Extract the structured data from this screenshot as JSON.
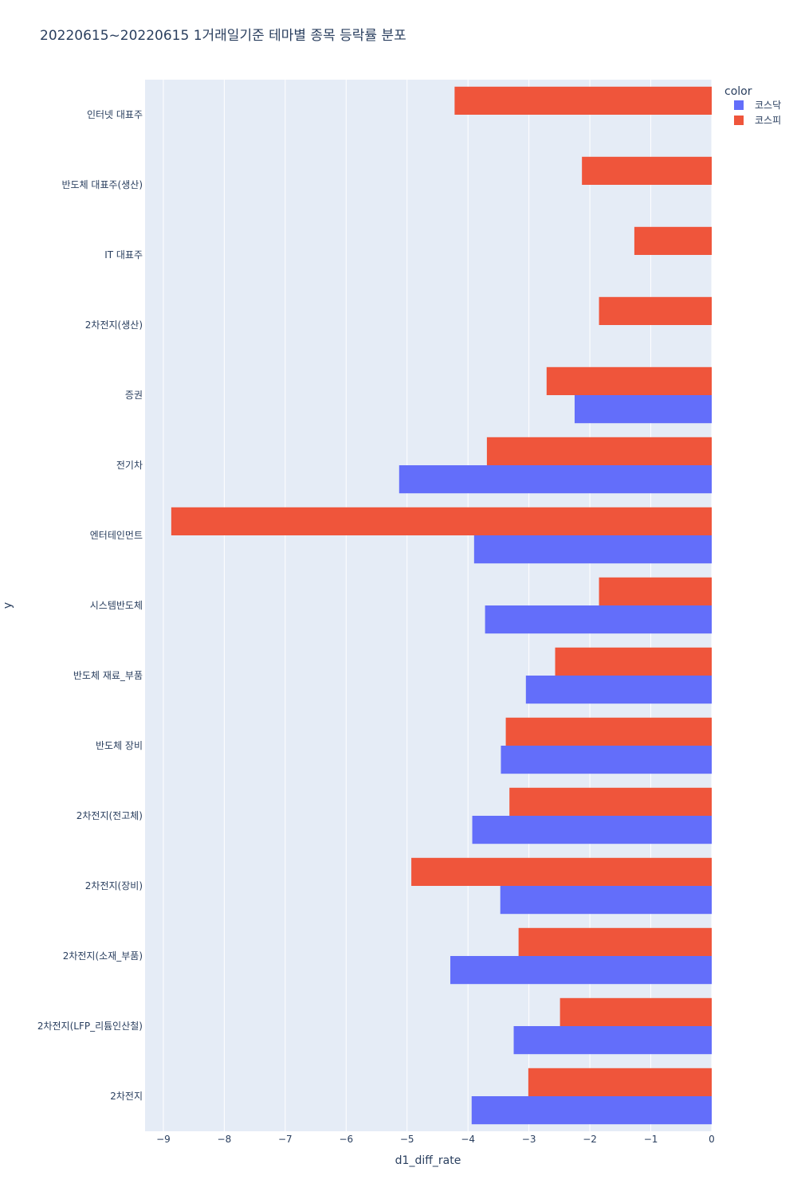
{
  "chart_data": {
    "type": "bar",
    "orientation": "horizontal",
    "barmode": "group",
    "title": "20220615~20220615 1거래일기준 테마별 종목 등락률 분포",
    "xlabel": "d1_diff_rate",
    "ylabel": "y",
    "xlim": [
      -9.3,
      0
    ],
    "xticks": [
      {
        "value": -9,
        "label": "−9"
      },
      {
        "value": -8,
        "label": "−8"
      },
      {
        "value": -7,
        "label": "−7"
      },
      {
        "value": -6,
        "label": "−6"
      },
      {
        "value": -5,
        "label": "−5"
      },
      {
        "value": -4,
        "label": "−4"
      },
      {
        "value": -3,
        "label": "−3"
      },
      {
        "value": -2,
        "label": "−2"
      },
      {
        "value": -1,
        "label": "−1"
      },
      {
        "value": 0,
        "label": "0"
      }
    ],
    "categories": [
      "인터넷 대표주",
      "반도체 대표주(생산)",
      "IT 대표주",
      "2차전지(생산)",
      "증권",
      "전기차",
      "엔터테인먼트",
      "시스템반도체",
      "반도체 재료_부품",
      "반도체 장비",
      "2차전지(전고체)",
      "2차전지(장비)",
      "2차전지(소재_부품)",
      "2차전지(LFP_리튬인산철)",
      "2차전지"
    ],
    "legend_title": "color",
    "series": [
      {
        "name": "코스닥",
        "color": "#636efa",
        "values": [
          null,
          null,
          null,
          null,
          -2.25,
          -5.13,
          -3.9,
          -3.72,
          -3.05,
          -3.46,
          -3.93,
          -3.47,
          -4.29,
          -3.25,
          -3.94
        ]
      },
      {
        "name": "코스피",
        "color": "#ef553b",
        "values": [
          -4.22,
          -2.13,
          -1.27,
          -1.85,
          -2.71,
          -3.69,
          -8.87,
          -1.85,
          -2.57,
          -3.38,
          -3.32,
          -4.93,
          -3.17,
          -2.49,
          -3.01
        ]
      }
    ],
    "grid": true,
    "legend_position": "top-right"
  }
}
